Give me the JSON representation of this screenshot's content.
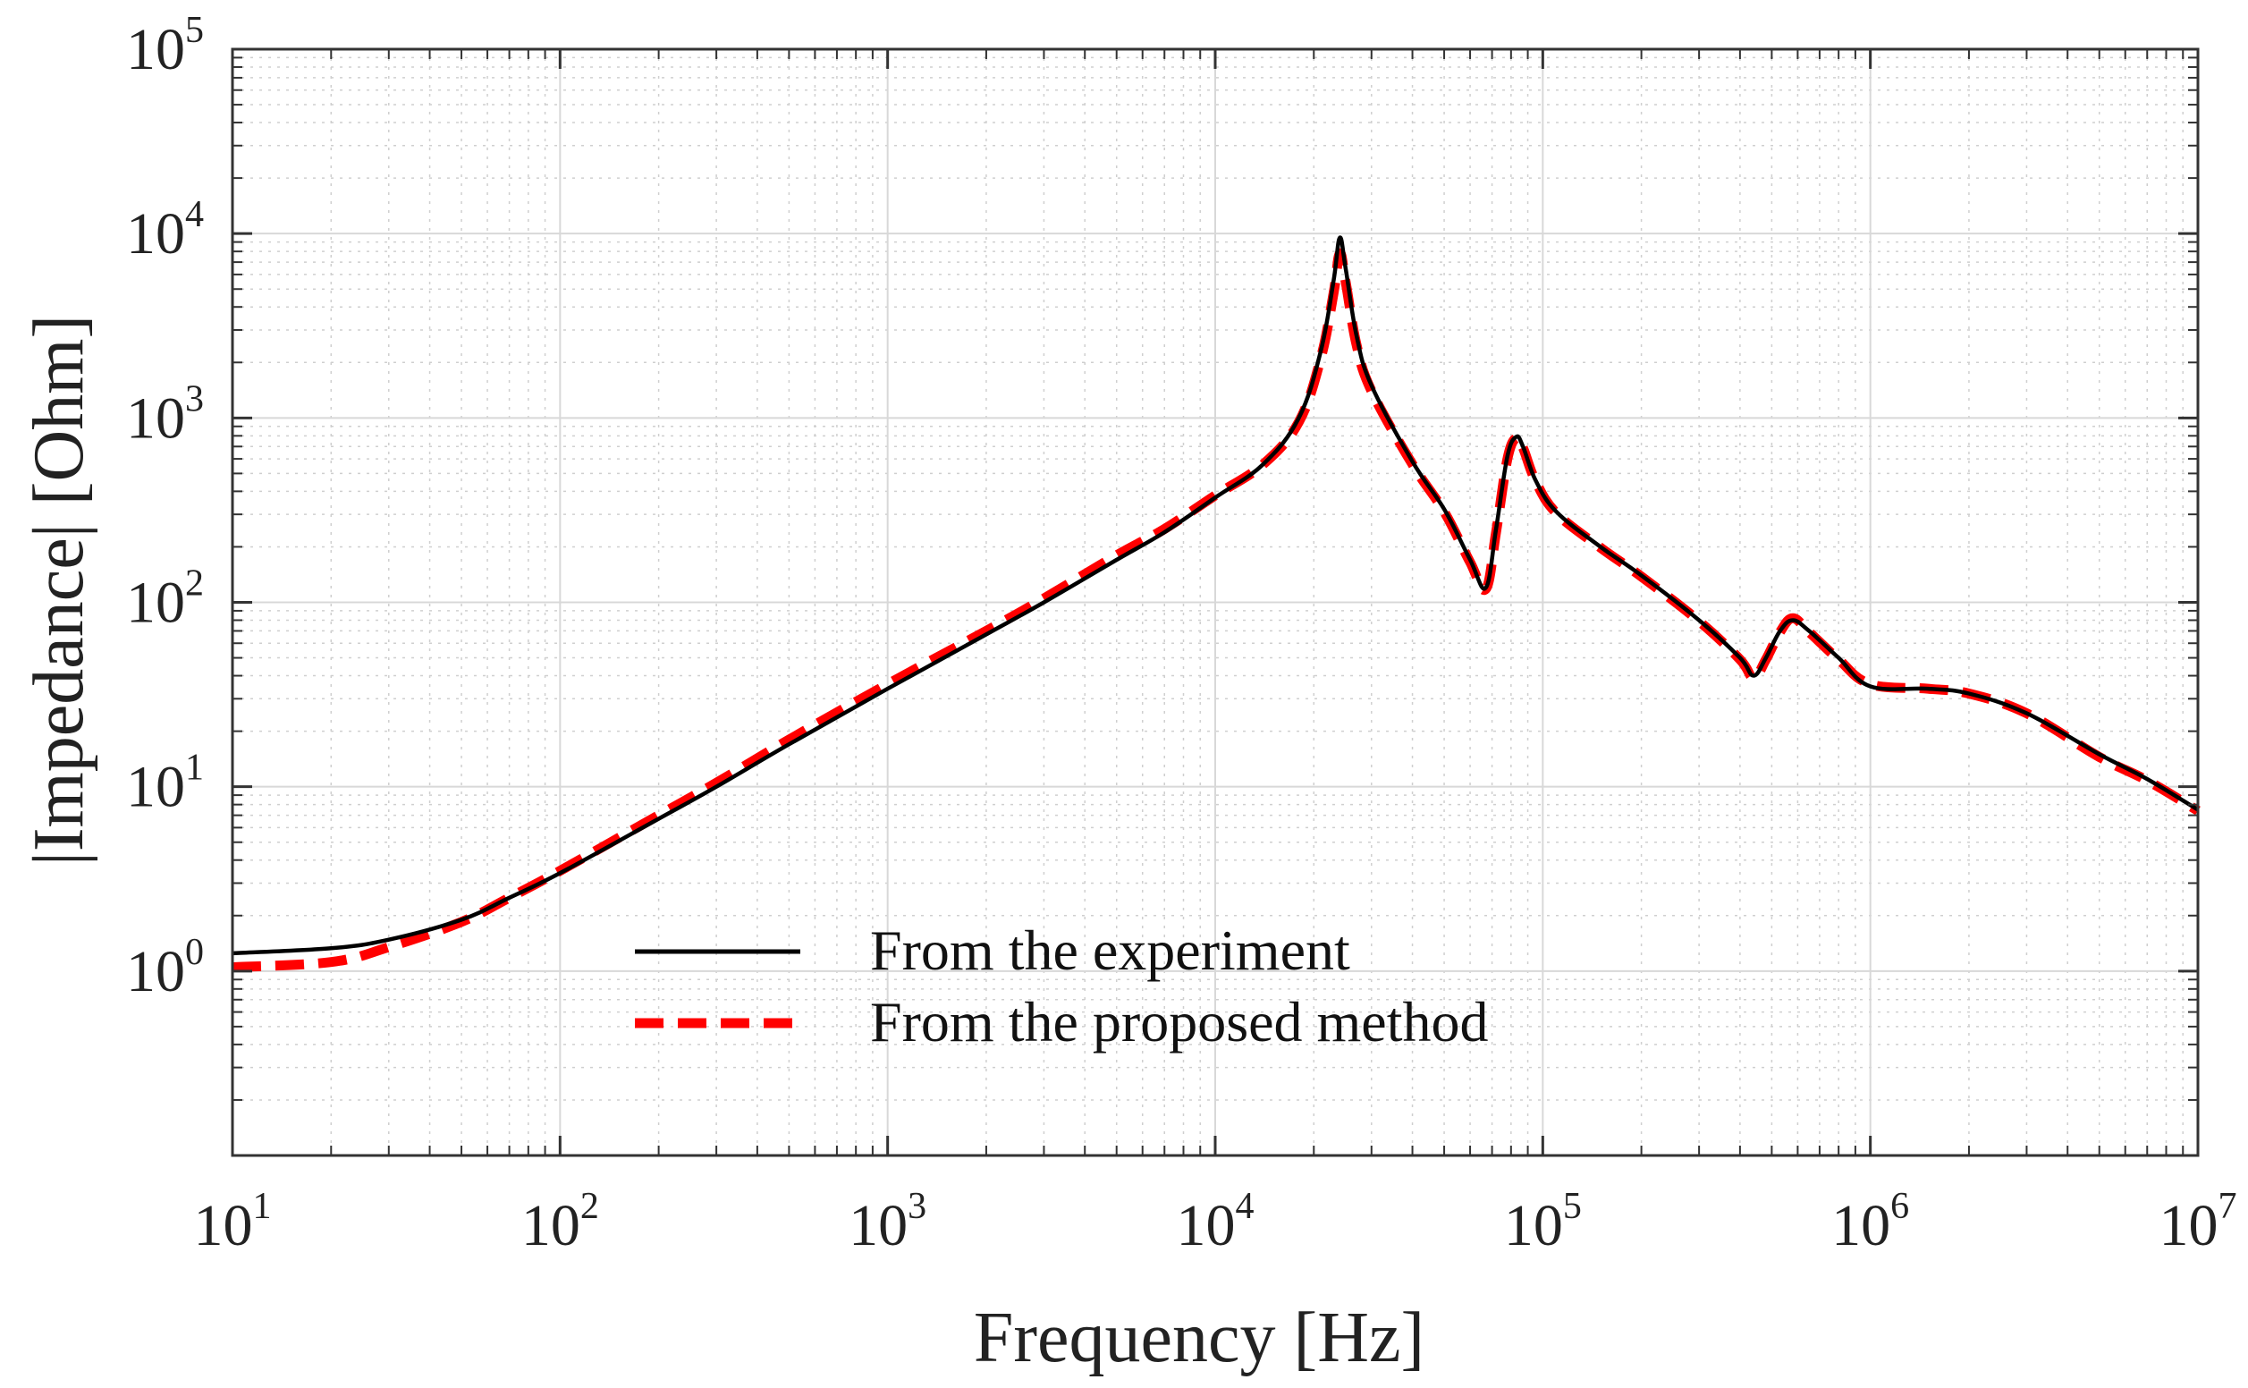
{
  "chart_data": {
    "type": "line",
    "title": "",
    "xlabel": "Frequency [Hz]",
    "ylabel": "|Impedance| [Ohm]",
    "xscale": "log",
    "yscale": "log",
    "xlim": [
      10,
      10000000
    ],
    "ylim": [
      0.1,
      100000
    ],
    "grid": true,
    "x_ticks": [
      {
        "base": "10",
        "exp": "1"
      },
      {
        "base": "10",
        "exp": "2"
      },
      {
        "base": "10",
        "exp": "3"
      },
      {
        "base": "10",
        "exp": "4"
      },
      {
        "base": "10",
        "exp": "5"
      },
      {
        "base": "10",
        "exp": "6"
      },
      {
        "base": "10",
        "exp": "7"
      }
    ],
    "y_ticks": [
      {
        "base": "10",
        "exp": "0"
      },
      {
        "base": "10",
        "exp": "1"
      },
      {
        "base": "10",
        "exp": "2"
      },
      {
        "base": "10",
        "exp": "3"
      },
      {
        "base": "10",
        "exp": "4"
      },
      {
        "base": "10",
        "exp": "5"
      }
    ],
    "legend_position": "center",
    "series": [
      {
        "name": "From the experiment",
        "color": "#000000",
        "style": "solid",
        "x": [
          10,
          20,
          30,
          50,
          70,
          100,
          200,
          300,
          500,
          1000,
          2000,
          3000,
          5000,
          7000,
          10000,
          14000,
          18000,
          21000,
          23000,
          24000,
          25000,
          27000,
          30000,
          40000,
          50000,
          60000,
          67000,
          72000,
          78000,
          83000,
          87000,
          95000,
          110000,
          150000,
          200000,
          300000,
          400000,
          440000,
          480000,
          530000,
          580000,
          650000,
          800000,
          1000000,
          1500000,
          2000000,
          3000000,
          5000000,
          7000000,
          10000000
        ],
        "y": [
          1.25,
          1.33,
          1.48,
          1.9,
          2.5,
          3.4,
          6.7,
          10,
          17,
          34,
          67,
          100,
          170,
          240,
          370,
          560,
          1000,
          2300,
          5600,
          9500,
          6500,
          2800,
          1500,
          580,
          320,
          170,
          120,
          250,
          620,
          790,
          700,
          460,
          310,
          200,
          140,
          80,
          50,
          40,
          50,
          70,
          80,
          70,
          50,
          35,
          34,
          32,
          25,
          15,
          11,
          7.5
        ]
      },
      {
        "name": "From the proposed method",
        "color": "#ff0000",
        "style": "dashed",
        "x": [
          10,
          20,
          30,
          50,
          70,
          100,
          200,
          300,
          500,
          1000,
          2000,
          3000,
          5000,
          7000,
          10000,
          14000,
          18000,
          21000,
          23000,
          24000,
          25000,
          27000,
          30000,
          40000,
          50000,
          60000,
          67000,
          72000,
          78000,
          83000,
          87000,
          95000,
          110000,
          150000,
          200000,
          300000,
          400000,
          440000,
          480000,
          530000,
          580000,
          650000,
          800000,
          1000000,
          1500000,
          2000000,
          3000000,
          5000000,
          7000000,
          10000000
        ],
        "y": [
          1.05,
          1.12,
          1.35,
          1.85,
          2.5,
          3.5,
          7,
          10.5,
          18,
          36,
          70,
          105,
          180,
          250,
          380,
          560,
          950,
          2100,
          4800,
          7800,
          5500,
          2500,
          1400,
          560,
          310,
          165,
          118,
          240,
          600,
          780,
          690,
          455,
          305,
          198,
          138,
          79,
          49,
          39,
          49,
          69,
          82,
          69,
          49,
          36,
          34,
          32,
          25,
          14.5,
          10.8,
          7.4
        ]
      }
    ]
  }
}
